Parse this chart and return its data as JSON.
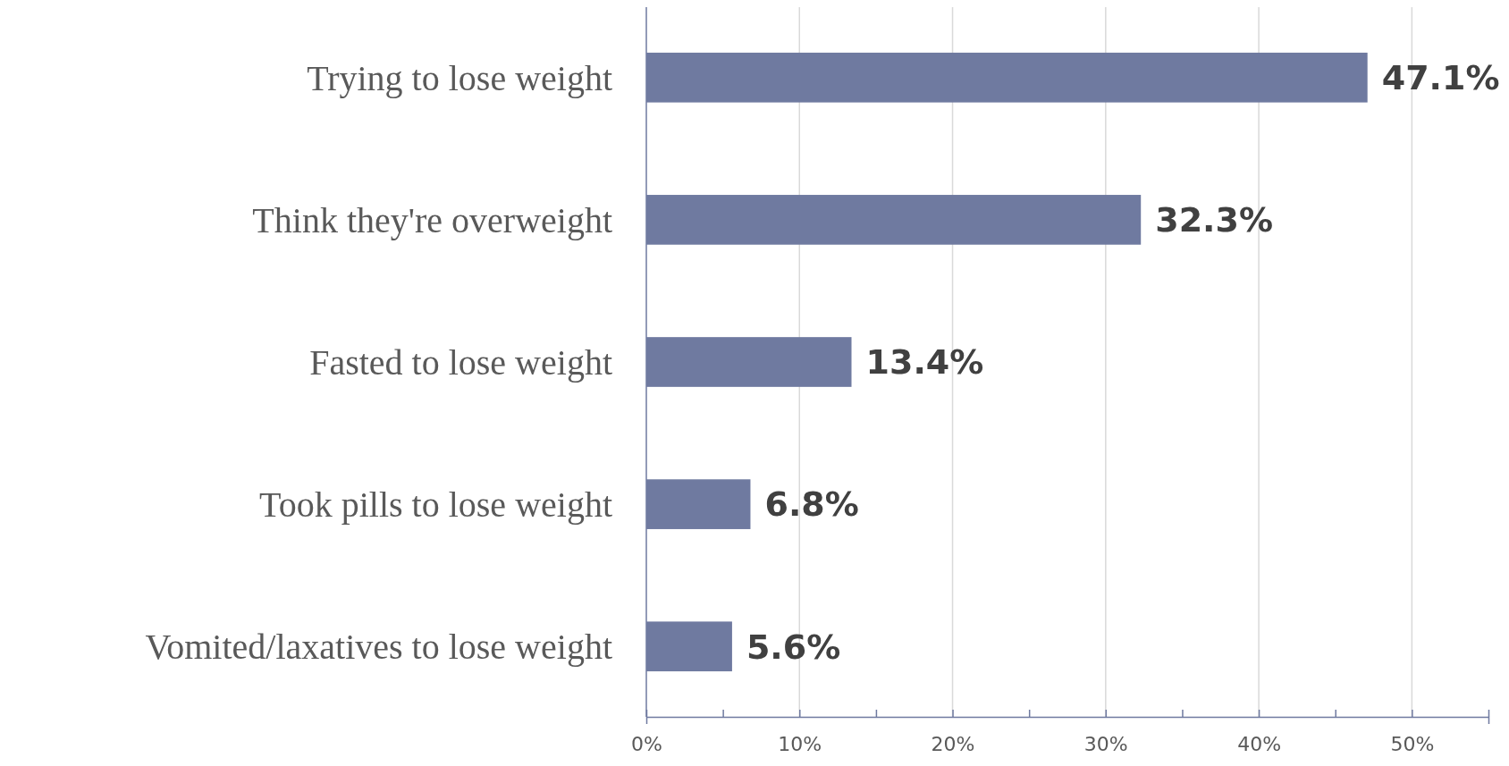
{
  "chart_data": {
    "type": "bar",
    "orientation": "horizontal",
    "categories": [
      "Trying to lose weight",
      "Think they're overweight",
      "Fasted to lose weight",
      "Took pills to lose weight",
      "Vomited/laxatives to lose weight"
    ],
    "values": [
      47.1,
      32.3,
      13.4,
      6.8,
      5.6
    ],
    "value_labels": [
      "47.1%",
      "32.3%",
      "13.4%",
      "6.8%",
      "5.6%"
    ],
    "color": "#6f7aa0",
    "xlim": [
      0,
      55
    ],
    "xticks": [
      {
        "value": 0,
        "label": "0%"
      },
      {
        "value": 5,
        "label": null
      },
      {
        "value": 10,
        "label": "10%"
      },
      {
        "value": 15,
        "label": null
      },
      {
        "value": 20,
        "label": "20%"
      },
      {
        "value": 25,
        "label": null
      },
      {
        "value": 30,
        "label": "30%"
      },
      {
        "value": 35,
        "label": null
      },
      {
        "value": 40,
        "label": "40%"
      },
      {
        "value": 45,
        "label": null
      },
      {
        "value": 50,
        "label": "50%"
      },
      {
        "value": 55,
        "label": null
      }
    ],
    "grid": "x"
  }
}
